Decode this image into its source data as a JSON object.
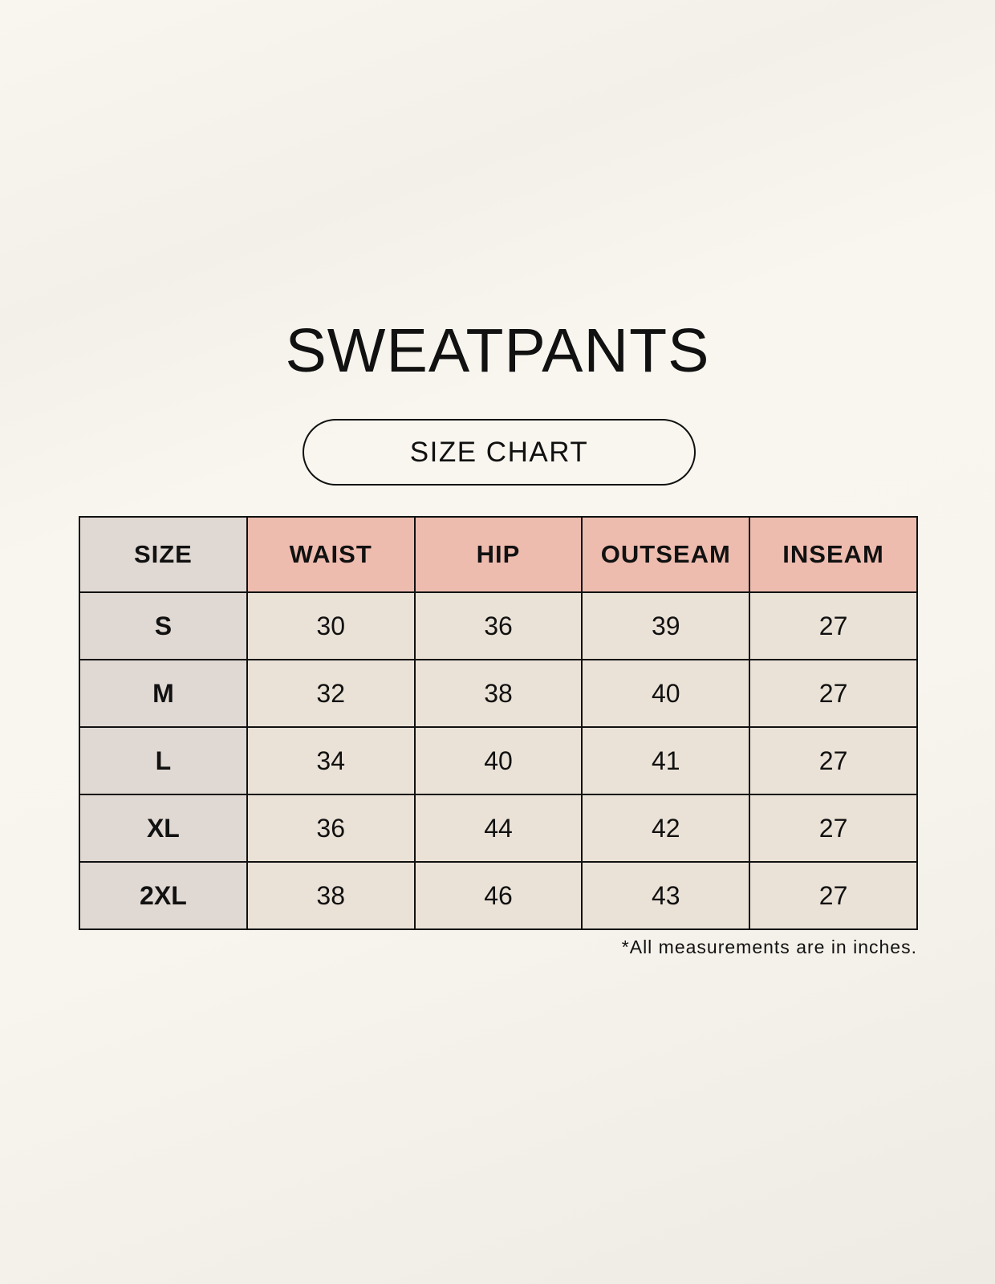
{
  "title": "SWEATPANTS",
  "subtitle": "SIZE CHART",
  "colors": {
    "background": "#f8f5ee",
    "size_column": "#e0d8d2",
    "header": "#eebcaf",
    "cell": "#ebe2d7"
  },
  "table": {
    "headers": [
      "SIZE",
      "WAIST",
      "HIP",
      "OUTSEAM",
      "INSEAM"
    ],
    "rows": [
      [
        "S",
        "30",
        "36",
        "39",
        "27"
      ],
      [
        "M",
        "32",
        "38",
        "40",
        "27"
      ],
      [
        "L",
        "34",
        "40",
        "41",
        "27"
      ],
      [
        "XL",
        "36",
        "44",
        "42",
        "27"
      ],
      [
        "2XL",
        "38",
        "46",
        "43",
        "27"
      ]
    ]
  },
  "footnote": "*All measurements are in inches."
}
